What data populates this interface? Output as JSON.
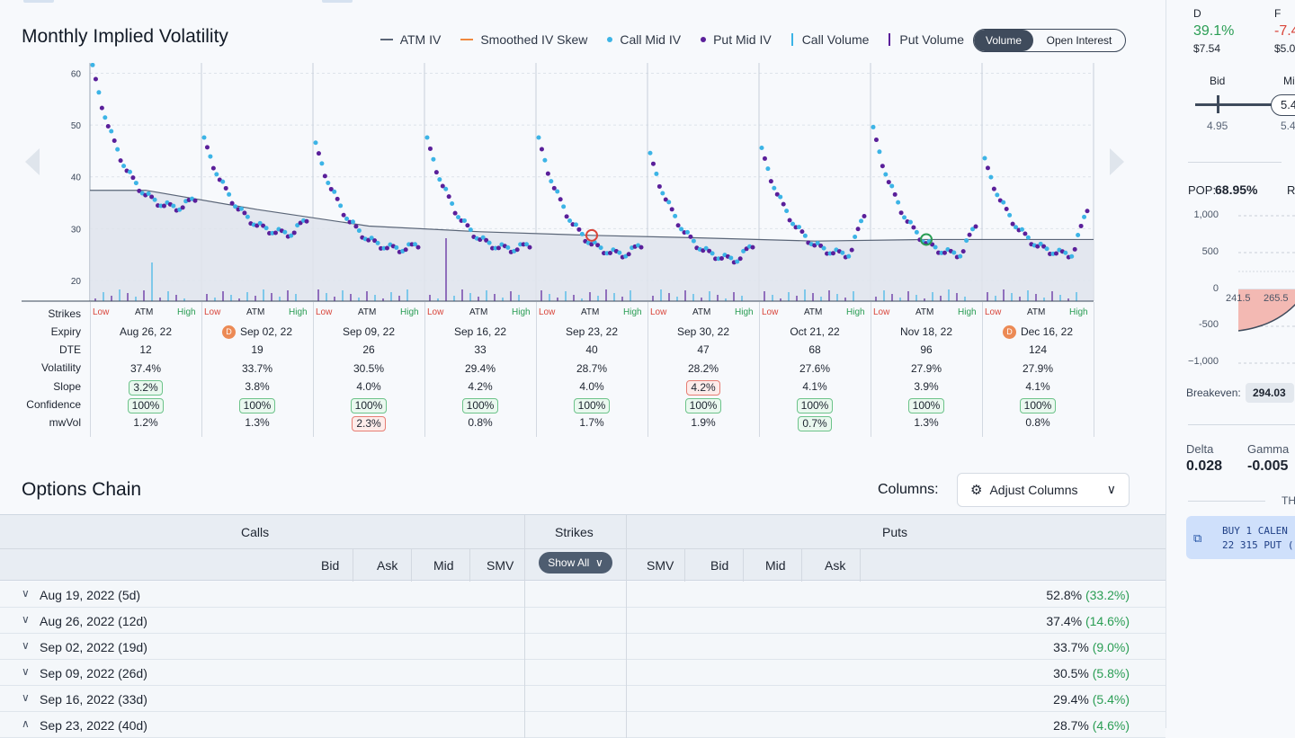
{
  "header": {
    "title": "Monthly Implied Volatility",
    "legend": [
      {
        "label": "ATM IV",
        "kind": "line",
        "color": "#5a6577"
      },
      {
        "label": "Smoothed IV Skew",
        "kind": "line",
        "color": "#f0883e"
      },
      {
        "label": "Call Mid IV",
        "kind": "dot",
        "color": "#3cb4e6"
      },
      {
        "label": "Put Mid IV",
        "kind": "dot",
        "color": "#5a1f9a"
      },
      {
        "label": "Call Volume",
        "kind": "bar",
        "color": "#3cb4e6"
      },
      {
        "label": "Put Volume",
        "kind": "bar",
        "color": "#5a1f9a"
      }
    ],
    "toggle": {
      "active": "Volume",
      "inactive": "Open Interest"
    }
  },
  "chart_data": {
    "type": "scatter",
    "title": "Monthly Implied Volatility",
    "ylim": [
      16,
      62
    ],
    "y_ticks": [
      20,
      30,
      40,
      50,
      60
    ],
    "colors": {
      "atm": "#5a6577",
      "call": "#3cb4e6",
      "put": "#5a1f9a"
    },
    "atm_iv": [
      37.4,
      33.7,
      30.5,
      29.4,
      28.7,
      28.2,
      27.6,
      27.9,
      27.9
    ],
    "panels": [
      {
        "expiry": "Aug 26, 22",
        "start": 61,
        "end": 34,
        "tail": 36
      },
      {
        "expiry": "Sep 02, 22",
        "start": 47,
        "end": 29,
        "tail": 32
      },
      {
        "expiry": "Sep 09, 22",
        "start": 46,
        "end": 26,
        "tail": 27
      },
      {
        "expiry": "Sep 16, 22",
        "start": 47,
        "end": 26,
        "tail": 27
      },
      {
        "expiry": "Sep 23, 22",
        "start": 47,
        "end": 25,
        "tail": 27
      },
      {
        "expiry": "Sep 30, 22",
        "start": 44,
        "end": 24,
        "tail": 27
      },
      {
        "expiry": "Oct 21, 22",
        "start": 45,
        "end": 25,
        "tail": 33
      },
      {
        "expiry": "Nov 18, 22",
        "start": 49,
        "end": 25,
        "tail": 31
      },
      {
        "expiry": "Dec 16, 22",
        "start": 43,
        "end": 25,
        "tail": 34
      }
    ]
  },
  "grid": {
    "row_labels": [
      "Strikes",
      "Expiry",
      "DTE",
      "Volatility",
      "Slope",
      "Confidence",
      "mwVol"
    ],
    "strike_low": "Low",
    "strike_atm": "ATM",
    "strike_high": "High",
    "columns": [
      {
        "expiry": "Aug 26, 22",
        "badge": "",
        "dte": "12",
        "vol": "37.4%",
        "slope": "3.2%",
        "slope_pill": "g",
        "conf": "100%",
        "conf_pill": "g",
        "mwvol": "1.2%",
        "mwvol_pill": ""
      },
      {
        "expiry": "Sep 02, 22",
        "badge": "D",
        "dte": "19",
        "vol": "33.7%",
        "slope": "3.8%",
        "slope_pill": "",
        "conf": "100%",
        "conf_pill": "g",
        "mwvol": "1.3%",
        "mwvol_pill": ""
      },
      {
        "expiry": "Sep 09, 22",
        "badge": "",
        "dte": "26",
        "vol": "30.5%",
        "slope": "4.0%",
        "slope_pill": "",
        "conf": "100%",
        "conf_pill": "g",
        "mwvol": "2.3%",
        "mwvol_pill": "r"
      },
      {
        "expiry": "Sep 16, 22",
        "badge": "",
        "dte": "33",
        "vol": "29.4%",
        "slope": "4.2%",
        "slope_pill": "",
        "conf": "100%",
        "conf_pill": "g",
        "mwvol": "0.8%",
        "mwvol_pill": ""
      },
      {
        "expiry": "Sep 23, 22",
        "badge": "",
        "dte": "40",
        "vol": "28.7%",
        "slope": "4.0%",
        "slope_pill": "",
        "conf": "100%",
        "conf_pill": "g",
        "mwvol": "1.7%",
        "mwvol_pill": ""
      },
      {
        "expiry": "Sep 30, 22",
        "badge": "",
        "dte": "47",
        "vol": "28.2%",
        "slope": "4.2%",
        "slope_pill": "r",
        "conf": "100%",
        "conf_pill": "g",
        "mwvol": "1.9%",
        "mwvol_pill": ""
      },
      {
        "expiry": "Oct 21, 22",
        "badge": "",
        "dte": "68",
        "vol": "27.6%",
        "slope": "4.1%",
        "slope_pill": "",
        "conf": "100%",
        "conf_pill": "g",
        "mwvol": "0.7%",
        "mwvol_pill": "g"
      },
      {
        "expiry": "Nov 18, 22",
        "badge": "",
        "dte": "96",
        "vol": "27.9%",
        "slope": "3.9%",
        "slope_pill": "",
        "conf": "100%",
        "conf_pill": "g",
        "mwvol": "1.3%",
        "mwvol_pill": ""
      },
      {
        "expiry": "Dec 16, 22",
        "badge": "D",
        "dte": "124",
        "vol": "27.9%",
        "slope": "4.1%",
        "slope_pill": "",
        "conf": "100%",
        "conf_pill": "g",
        "mwvol": "0.8%",
        "mwvol_pill": ""
      }
    ]
  },
  "chain": {
    "title": "Options Chain",
    "columns_label": "Columns:",
    "adjust_label": "Adjust Columns",
    "calls_label": "Calls",
    "strikes_label": "Strikes",
    "puts_label": "Puts",
    "call_cols": [
      "Bid",
      "Ask",
      "Mid",
      "SMV"
    ],
    "put_cols": [
      "SMV",
      "Bid",
      "Mid",
      "Ask"
    ],
    "show_all": "Show All",
    "rows": [
      {
        "expiry": "Aug 19, 2022 (5d)",
        "iv": "52.8%",
        "chg": "(33.2%)",
        "open": false
      },
      {
        "expiry": "Aug 26, 2022 (12d)",
        "iv": "37.4%",
        "chg": "(14.6%)",
        "open": false
      },
      {
        "expiry": "Sep 02, 2022 (19d)",
        "iv": "33.7%",
        "chg": "(9.0%)",
        "open": false
      },
      {
        "expiry": "Sep 09, 2022 (26d)",
        "iv": "30.5%",
        "chg": "(5.8%)",
        "open": false
      },
      {
        "expiry": "Sep 16, 2022 (33d)",
        "iv": "29.4%",
        "chg": "(5.4%)",
        "open": false
      },
      {
        "expiry": "Sep 23, 2022 (40d)",
        "iv": "28.7%",
        "chg": "(4.6%)",
        "open": true
      }
    ]
  },
  "side": {
    "d_label": "D",
    "d_value": "39.1%",
    "d_price": "$7.54",
    "f_label": "F",
    "f_value": "-7.4",
    "f_price": "$5.0",
    "bid_label": "Bid",
    "mid_label": "Mi",
    "bid_value": "4.95",
    "mid_value": "5.4",
    "mid_box": "5.4",
    "pop_label": "POP:",
    "pop_value": "68.95%",
    "pop_r": "R",
    "y_ticks": [
      "1,000",
      "500",
      "0",
      "-500",
      "−1,000"
    ],
    "x_ticks": [
      "241.5",
      "265.5"
    ],
    "breakeven_label": "Breakeven:",
    "breakeven_value": "294.03",
    "delta_label": "Delta",
    "delta_value": "0.028",
    "gamma_label": "Gamma",
    "gamma_value": "-0.005",
    "th_label": "TH",
    "trade_line1": "BUY 1 CALEN",
    "trade_line2": "22 315 PUT ("
  }
}
